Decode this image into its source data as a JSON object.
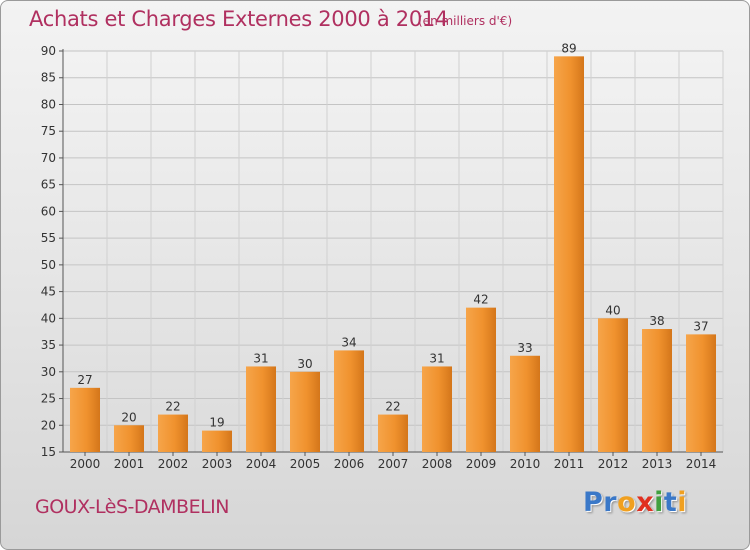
{
  "header": {
    "title": "Achats et Charges Externes 2000 à 2014",
    "unit": "(en milliers d'€)"
  },
  "footer": {
    "commune": "GOUX-LèS-DAMBELIN",
    "logo_letters": [
      {
        "ch": "P",
        "color": "#3a78c8"
      },
      {
        "ch": "r",
        "color": "#3a78c8"
      },
      {
        "ch": "o",
        "color": "#f0a020"
      },
      {
        "ch": "x",
        "color": "#e03020"
      },
      {
        "ch": "i",
        "color": "#40a040"
      },
      {
        "ch": "t",
        "color": "#3a78c8"
      },
      {
        "ch": "i",
        "color": "#f0a020"
      }
    ]
  },
  "chart_data": {
    "type": "bar",
    "title": "Achats et Charges Externes 2000 à 2014",
    "unit": "(en milliers d'€)",
    "categories": [
      "2000",
      "2001",
      "2002",
      "2003",
      "2004",
      "2005",
      "2006",
      "2007",
      "2008",
      "2009",
      "2010",
      "2011",
      "2012",
      "2013",
      "2014"
    ],
    "values": [
      27,
      20,
      22,
      19,
      31,
      30,
      34,
      22,
      31,
      42,
      33,
      89,
      40,
      38,
      37
    ],
    "ylim": [
      15,
      90
    ],
    "yticks": [
      15,
      20,
      25,
      30,
      35,
      40,
      45,
      50,
      55,
      60,
      65,
      70,
      75,
      80,
      85,
      90
    ],
    "grid": true,
    "bar_color": "#f0922e"
  }
}
